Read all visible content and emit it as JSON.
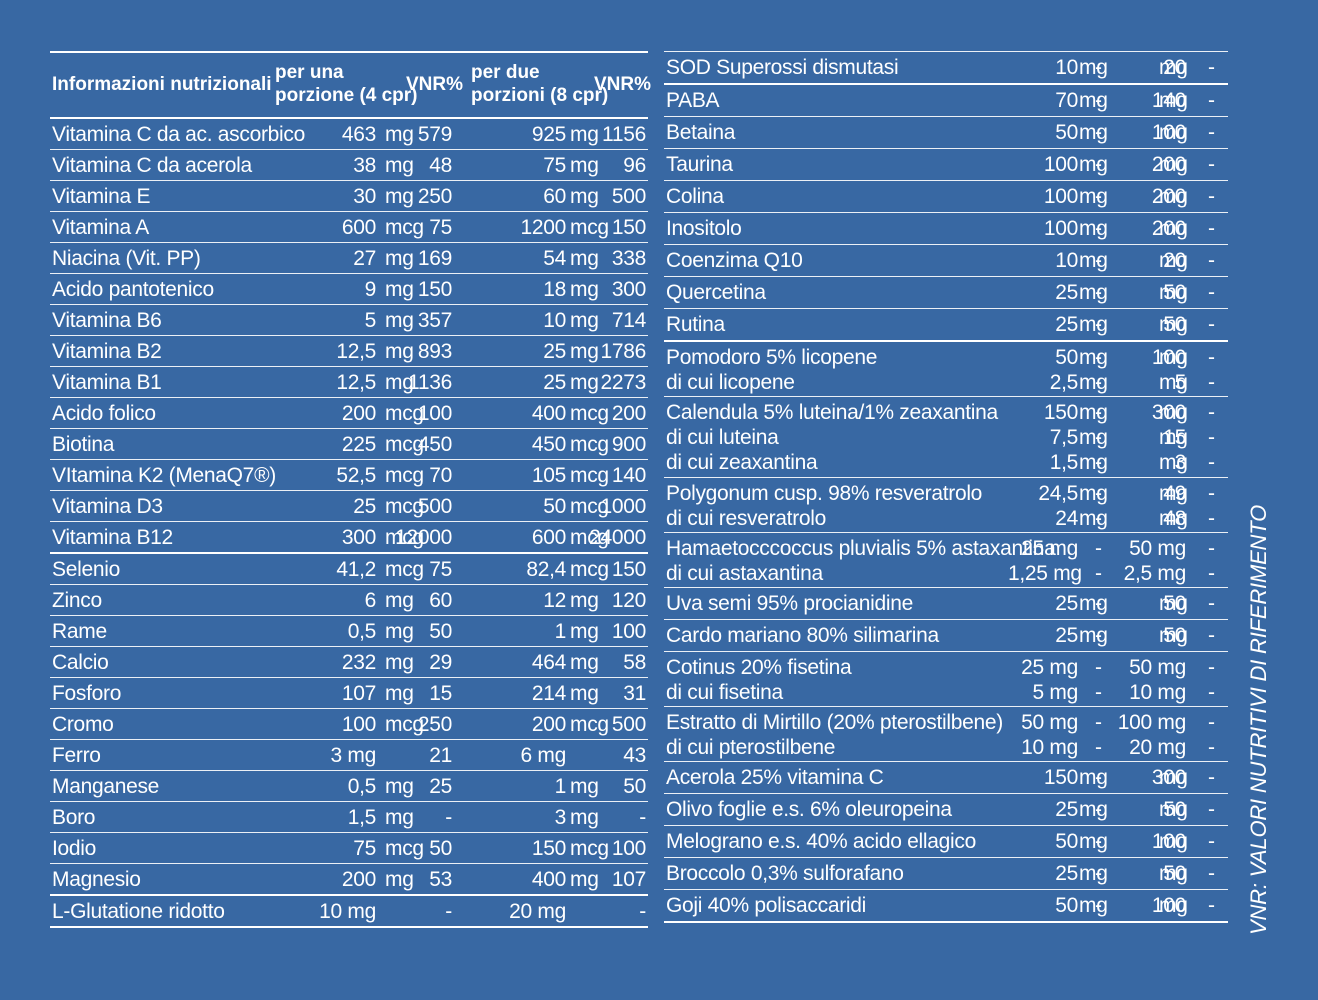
{
  "left": {
    "header": {
      "name": "Informazioni nutrizionali",
      "col1_l1": "per una",
      "col1_l2": "porzione (4 cpr)",
      "vnr1": "VNR%",
      "col2_l1": "per due",
      "col2_l2": "porzioni (8 cpr)",
      "vnr2": "VNR%"
    },
    "groups": [
      [
        {
          "name": "Vitamina C da ac. ascorbico",
          "a1": "463",
          "u1": "mg",
          "v1": "579",
          "a2": "925",
          "u2": "mg",
          "v2": "1156"
        },
        {
          "name": "Vitamina C da acerola",
          "a1": "38",
          "u1": "mg",
          "v1": "48",
          "a2": "75",
          "u2": "mg",
          "v2": "96"
        },
        {
          "name": "Vitamina E",
          "a1": "30",
          "u1": "mg",
          "v1": "250",
          "a2": "60",
          "u2": "mg",
          "v2": "500"
        },
        {
          "name": "Vitamina A",
          "a1": "600",
          "u1": "mcg",
          "v1": "75",
          "a2": "1200",
          "u2": "mcg",
          "v2": "150"
        },
        {
          "name": "Niacina (Vit. PP)",
          "a1": "27",
          "u1": "mg",
          "v1": "169",
          "a2": "54",
          "u2": "mg",
          "v2": "338"
        },
        {
          "name": "Acido pantotenico",
          "a1": "9",
          "u1": "mg",
          "v1": "150",
          "a2": "18",
          "u2": "mg",
          "v2": "300"
        },
        {
          "name": "Vitamina B6",
          "a1": "5",
          "u1": "mg",
          "v1": "357",
          "a2": "10",
          "u2": "mg",
          "v2": "714"
        },
        {
          "name": "Vitamina B2",
          "a1": "12,5",
          "u1": "mg",
          "v1": "893",
          "a2": "25",
          "u2": "mg",
          "v2": "1786"
        },
        {
          "name": "Vitamina B1",
          "a1": "12,5",
          "u1": "mg",
          "v1": "1136",
          "a2": "25",
          "u2": "mg",
          "v2": "2273"
        },
        {
          "name": "Acido folico",
          "a1": "200",
          "u1": "mcg",
          "v1": "100",
          "a2": "400",
          "u2": "mcg",
          "v2": "200"
        },
        {
          "name": "Biotina",
          "a1": "225",
          "u1": "mcg",
          "v1": "450",
          "a2": "450",
          "u2": "mcg",
          "v2": "900"
        },
        {
          "name": "VItamina K2 (MenaQ7®)",
          "a1": "52,5",
          "u1": "mcg",
          "v1": "70",
          "a2": "105",
          "u2": "mcg",
          "v2": "140"
        },
        {
          "name": "Vitamina D3",
          "a1": "25",
          "u1": "mcg",
          "v1": "500",
          "a2": "50",
          "u2": "mcg",
          "v2": "1000"
        },
        {
          "name": "Vitamina B12",
          "a1": "300",
          "u1": "mcg",
          "v1": "12000",
          "a2": "600",
          "u2": "mcg",
          "v2": "24000"
        }
      ],
      [
        {
          "name": "Selenio",
          "a1": "41,2",
          "u1": "mcg",
          "v1": "75",
          "a2": "82,4",
          "u2": "mcg",
          "v2": "150"
        },
        {
          "name": "Zinco",
          "a1": "6",
          "u1": "mg",
          "v1": "60",
          "a2": "12",
          "u2": "mg",
          "v2": "120"
        },
        {
          "name": "Rame",
          "a1": "0,5",
          "u1": "mg",
          "v1": "50",
          "a2": "1",
          "u2": "mg",
          "v2": "100"
        },
        {
          "name": "Calcio",
          "a1": "232",
          "u1": "mg",
          "v1": "29",
          "a2": "464",
          "u2": "mg",
          "v2": "58"
        },
        {
          "name": "Fosforo",
          "a1": "107",
          "u1": "mg",
          "v1": "15",
          "a2": "214",
          "u2": "mg",
          "v2": "31"
        },
        {
          "name": "Cromo",
          "a1": "100",
          "u1": "mcg",
          "v1": "250",
          "a2": "200",
          "u2": "mcg",
          "v2": "500"
        },
        {
          "name": "Ferro",
          "a1": "3 mg",
          "u1": "",
          "v1": "21",
          "a2": "6 mg",
          "u2": "",
          "v2": "43"
        },
        {
          "name": "Manganese",
          "a1": "0,5",
          "u1": "mg",
          "v1": "25",
          "a2": "1",
          "u2": "mg",
          "v2": "50"
        },
        {
          "name": "Boro",
          "a1": "1,5",
          "u1": "mg",
          "v1": "-",
          "a2": "3",
          "u2": "mg",
          "v2": "-"
        },
        {
          "name": "Iodio",
          "a1": "75",
          "u1": "mcg",
          "v1": "50",
          "a2": "150",
          "u2": "mcg",
          "v2": "100"
        },
        {
          "name": "Magnesio",
          "a1": "200",
          "u1": "mg",
          "v1": "53",
          "a2": "400",
          "u2": "mg",
          "v2": "107"
        }
      ],
      [
        {
          "name": "L-Glutatione ridotto",
          "a1": "10 mg",
          "u1": "",
          "v1": "-",
          "a2": "20 mg",
          "u2": "",
          "v2": "-"
        }
      ]
    ]
  },
  "right": {
    "groups": [
      [
        [
          {
            "name": "SOD Superossi dismutasi",
            "a1": "10",
            "u1": "mg",
            "d1": "-",
            "a2": "20",
            "u2": "mg",
            "d2": "-"
          }
        ]
      ],
      [
        [
          {
            "name": "PABA",
            "a1": "70",
            "u1": "mg",
            "d1": "-",
            "a2": "140",
            "u2": "mg",
            "d2": "-"
          }
        ],
        [
          {
            "name": "Betaina",
            "a1": "50",
            "u1": "mg",
            "d1": "-",
            "a2": "100",
            "u2": "mg",
            "d2": "-"
          }
        ],
        [
          {
            "name": "Taurina",
            "a1": "100",
            "u1": "mg",
            "d1": "-",
            "a2": "200",
            "u2": "mg",
            "d2": "-"
          }
        ],
        [
          {
            "name": "Colina",
            "a1": "100",
            "u1": "mg",
            "d1": "-",
            "a2": "200",
            "u2": "mg",
            "d2": "-"
          }
        ],
        [
          {
            "name": "Inositolo",
            "a1": "100",
            "u1": "mg",
            "d1": "-",
            "a2": "200",
            "u2": "mg",
            "d2": "-"
          }
        ],
        [
          {
            "name": "Coenzima Q10",
            "a1": "10",
            "u1": "mg",
            "d1": "-",
            "a2": "20",
            "u2": "mg",
            "d2": "-"
          }
        ],
        [
          {
            "name": "Quercetina",
            "a1": "25",
            "u1": "mg",
            "d1": "-",
            "a2": "50",
            "u2": "mg",
            "d2": "-"
          }
        ],
        [
          {
            "name": "Rutina",
            "a1": "25",
            "u1": "mg",
            "d1": "-",
            "a2": "50",
            "u2": "mg",
            "d2": "-"
          }
        ]
      ],
      [
        [
          {
            "name": "Pomodoro 5% licopene",
            "a1": "50",
            "u1": "mg",
            "d1": "-",
            "a2": "100",
            "u2": "mg",
            "d2": "-"
          },
          {
            "name": "di cui licopene",
            "a1": "2,5",
            "u1": "mg",
            "d1": "-",
            "a2": "5",
            "u2": "mg",
            "d2": "-"
          }
        ],
        [
          {
            "name": "Calendula 5% luteina/1% zeaxantina",
            "a1": "150",
            "u1": "mg",
            "d1": "-",
            "a2": "300",
            "u2": "mg",
            "d2": "-"
          },
          {
            "name": "di cui luteina",
            "a1": "7,5",
            "u1": "mg",
            "d1": "-",
            "a2": "15",
            "u2": "mg",
            "d2": "-"
          },
          {
            "name": "di cui zeaxantina",
            "a1": "1,5",
            "u1": "mg",
            "d1": "-",
            "a2": "3",
            "u2": "mg",
            "d2": "-"
          }
        ],
        [
          {
            "name": "Polygonum cusp. 98% resveratrolo",
            "a1": "24,5",
            "u1": "mg",
            "d1": "-",
            "a2": "49",
            "u2": "mg",
            "d2": "-"
          },
          {
            "name": "di cui resveratrolo",
            "a1": "24",
            "u1": "mg",
            "d1": "-",
            "a2": "48",
            "u2": "mg",
            "d2": "-"
          }
        ],
        [
          {
            "name": "Hamaetocccoccus pluvialis 5% astaxantina",
            "a1": "25 mg",
            "u1": "",
            "d1": "-",
            "a2": "50 mg",
            "u2": "",
            "d2": "-"
          },
          {
            "name": "di cui astaxantina",
            "a1": "1,25 mg",
            "u1": "",
            "d1": "-",
            "a2": "2,5 mg",
            "u2": "",
            "d2": "-"
          }
        ],
        [
          {
            "name": "Uva  semi 95% procianidine",
            "a1": "25",
            "u1": "mg",
            "d1": "-",
            "a2": "50",
            "u2": "mg",
            "d2": "-"
          }
        ],
        [
          {
            "name": "Cardo mariano 80% silimarina",
            "a1": "25",
            "u1": "mg",
            "d1": "-",
            "a2": "50",
            "u2": "mg",
            "d2": "-"
          }
        ],
        [
          {
            "name": "Cotinus 20% fisetina",
            "a1": "25 mg",
            "u1": "",
            "d1": "-",
            "a2": "50 mg",
            "u2": "",
            "d2": "-"
          },
          {
            "name": "di cui fisetina",
            "a1": "5 mg",
            "u1": "",
            "d1": "-",
            "a2": "10 mg",
            "u2": "",
            "d2": "-"
          }
        ],
        [
          {
            "name": "Estratto di Mirtillo (20% pterostilbene)",
            "a1": "50 mg",
            "u1": "",
            "d1": "-",
            "a2": "100 mg",
            "u2": "",
            "d2": "-"
          },
          {
            "name": "di cui pterostilbene",
            "a1": "10 mg",
            "u1": "",
            "d1": "-",
            "a2": "20 mg",
            "u2": "",
            "d2": "-"
          }
        ],
        [
          {
            "name": "Acerola 25% vitamina C",
            "a1": "150",
            "u1": "mg",
            "d1": "-",
            "a2": "300",
            "u2": "mg",
            "d2": "-"
          }
        ],
        [
          {
            "name": "Olivo foglie e.s. 6% oleuropeina",
            "a1": "25",
            "u1": "mg",
            "d1": "-",
            "a2": "50",
            "u2": "mg",
            "d2": "-"
          }
        ],
        [
          {
            "name": "Melograno e.s. 40% acido ellagico",
            "a1": "50",
            "u1": "mg",
            "d1": "-",
            "a2": "100",
            "u2": "mg",
            "d2": "-"
          }
        ],
        [
          {
            "name": "Broccolo 0,3% sulforafano",
            "a1": "25",
            "u1": "mg",
            "d1": "-",
            "a2": "50",
            "u2": "mg",
            "d2": "-"
          }
        ],
        [
          {
            "name": "Goji 40% polisaccaridi",
            "a1": "50",
            "u1": "mg",
            "d1": "-",
            "a2": "100",
            "u2": "mg",
            "d2": "-"
          }
        ]
      ]
    ]
  },
  "vertical_note": "VNR: VALORI NUTRITIVI DI RIFERIMENTO"
}
